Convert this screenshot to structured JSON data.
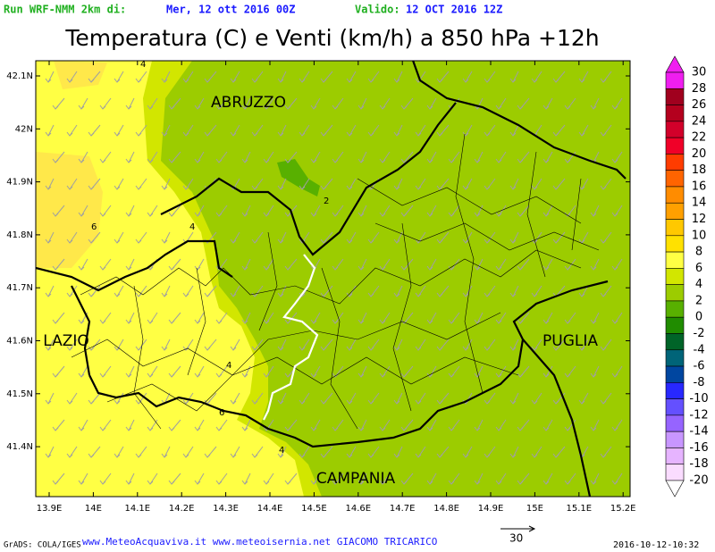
{
  "header": {
    "run_label": "Run WRF-NMM 2km di:",
    "run_date": "Mer, 12 ott 2016 00Z",
    "valid_label": "Valido:",
    "valid_date": "12 OCT 2016 12Z",
    "title": "Temperatura (C) e Venti (km/h) a 850 hPa +12h"
  },
  "map": {
    "regions": [
      "ABRUZZO",
      "LAZIO",
      "PUGLIA",
      "CAMPANIA"
    ],
    "contour_labels": [
      "4",
      "4",
      "6",
      "2",
      "4",
      "6",
      "4"
    ],
    "lat_ticks": [
      "42.1N",
      "42N",
      "41.9N",
      "41.8N",
      "41.7N",
      "41.6N",
      "41.5N",
      "41.4N"
    ],
    "lon_ticks": [
      "13.9E",
      "14E",
      "14.1E",
      "14.2E",
      "14.3E",
      "14.4E",
      "14.5E",
      "14.6E",
      "14.7E",
      "14.8E",
      "14.9E",
      "15E",
      "15.1E",
      "15.2E"
    ]
  },
  "colorbar": {
    "labels": [
      "30",
      "28",
      "26",
      "24",
      "22",
      "20",
      "18",
      "16",
      "14",
      "12",
      "10",
      "8",
      "6",
      "4",
      "2",
      "0",
      "-2",
      "-4",
      "-6",
      "-8",
      "-10",
      "-12",
      "-14",
      "-16",
      "-18",
      "-20"
    ],
    "colors": [
      "#f01ef0",
      "#a0001e",
      "#b4001e",
      "#d2002a",
      "#f00028",
      "#ff3c00",
      "#ff6400",
      "#ff8c00",
      "#ffa000",
      "#ffc800",
      "#ffe100",
      "#ffff44",
      "#d2e600",
      "#9ccc00",
      "#58b000",
      "#208c00",
      "#006428",
      "#006478",
      "#0046a0",
      "#2828ff",
      "#6450ff",
      "#9664ff",
      "#c896ff",
      "#e6b4ff",
      "#fadcff"
    ]
  },
  "footer": {
    "grads": "GrADS: COLA/IGES",
    "credits": "www.MeteoAcquaviva.it www.meteoisernia.net GIACOMO TRICARICO",
    "wind_scale": "30",
    "timestamp": "2016-10-12-10:32"
  }
}
